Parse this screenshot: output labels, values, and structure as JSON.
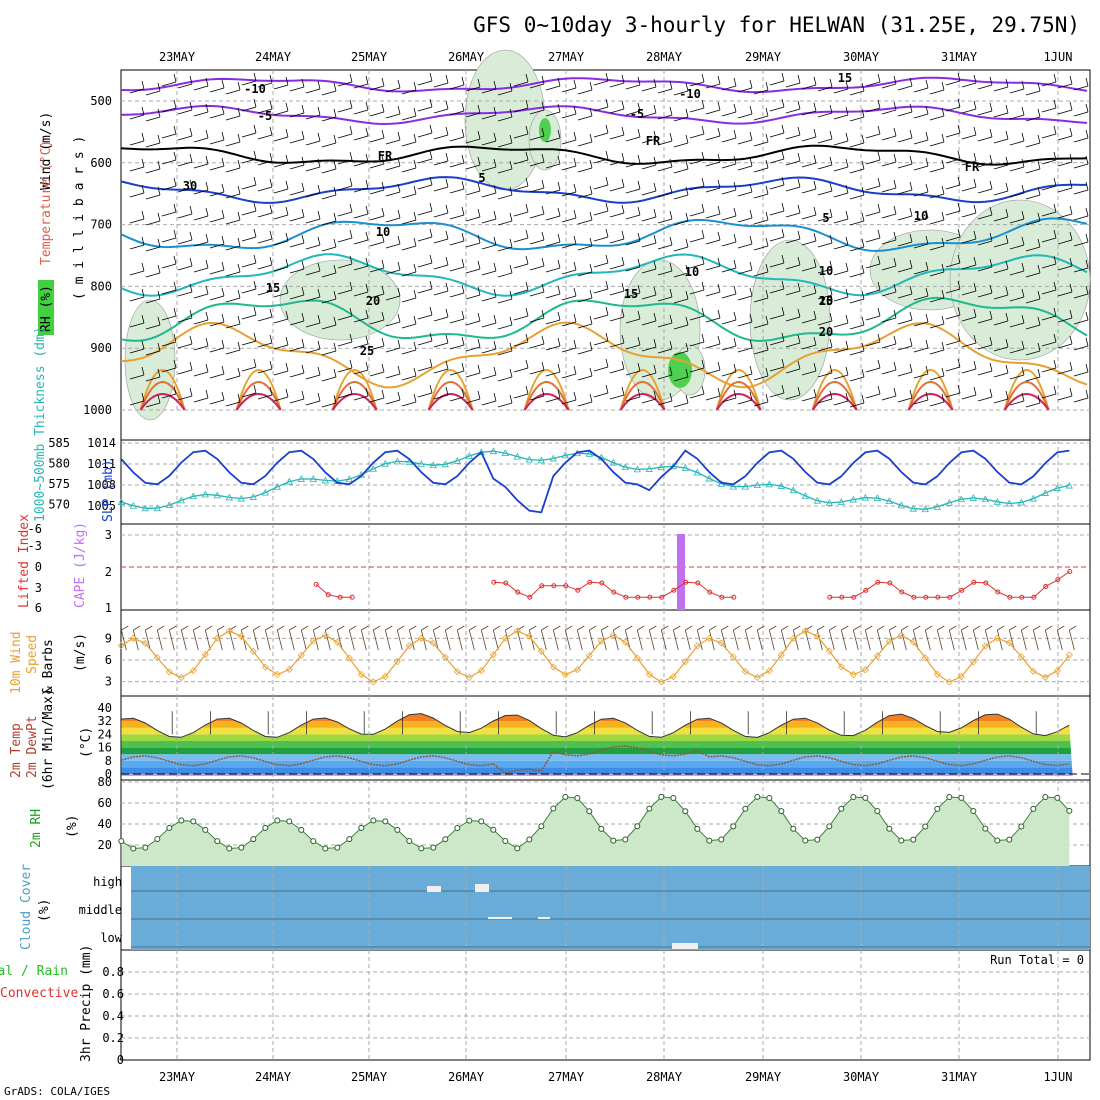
{
  "title": "GFS 0~10day 3-hourly for HELWAN (31.25E, 29.75N)",
  "footer": "GrADS: COLA/IGES",
  "dates": [
    "23MAY",
    "24MAY",
    "25MAY",
    "26MAY",
    "27MAY",
    "28MAY",
    "29MAY",
    "30MAY",
    "31MAY",
    "1JUN"
  ],
  "panels": {
    "upper": {
      "ylabel_unit": "( m i l l i b a r s )",
      "ylabel_wind": "Wind (m/s)",
      "ylabel_temp": "Temperature (°C)",
      "ylabel_rh": "RH (%)",
      "pressure_ticks": [
        "500",
        "600",
        "700",
        "800",
        "900",
        "1000"
      ],
      "contour_labels": [
        "-10",
        "-5",
        "FR",
        "5",
        "10",
        "15",
        "20",
        "25",
        "-10",
        "-5",
        "FR",
        "5",
        "10",
        "15",
        "20",
        "15",
        "FR",
        "10",
        "15",
        "20",
        "10",
        "30"
      ]
    },
    "slp": {
      "ylabel_thick": "1000~500mb Thickness (dm)",
      "ylabel_slp": "SLP (mb)",
      "left_ticks": [
        "585",
        "580",
        "575",
        "570"
      ],
      "right_ticks": [
        "1014",
        "1011",
        "1008",
        "1005"
      ]
    },
    "cape": {
      "ylabel_li": "Lifted Index",
      "ylabel_cape": "CAPE (J/kg)",
      "left_ticks": [
        "-6",
        "-3",
        "0",
        "3",
        "6"
      ],
      "right_ticks": [
        "3",
        "2",
        "1"
      ]
    },
    "wind10": {
      "ylabel1": "10m Wind",
      "ylabel2": "Speed",
      "ylabel3": "& Barbs",
      "ylabel_unit": "(m/s)",
      "ticks": [
        "9",
        "6",
        "3"
      ]
    },
    "temp2m": {
      "ylabel1": "2m Temp",
      "ylabel2": "2m DewPt",
      "ylabel3": "(6hr Min/Max)",
      "ylabel_unit": "(°C)",
      "ticks": [
        "40",
        "32",
        "24",
        "16",
        "8",
        "0"
      ]
    },
    "rh2m": {
      "ylabel": "2m RH",
      "ylabel_unit": "(%)",
      "ticks": [
        "80",
        "60",
        "40",
        "20"
      ]
    },
    "cloud": {
      "ylabel": "Cloud Cover",
      "ylabel_unit": "(%)",
      "levels": [
        "high",
        "middle",
        "low"
      ]
    },
    "precip": {
      "ylabel1": "Total / Rain",
      "ylabel2": "Convective",
      "ylabel3": "3hr Precip (mm)",
      "run_total": "Run Total = 0",
      "ticks": [
        "0.8",
        "0.6",
        "0.4",
        "0.2",
        "0"
      ]
    }
  },
  "colors": {
    "slp": "#1a3fcc",
    "thickness": "#2ab5b5",
    "lifted_index": "#e03030",
    "cape": "#c070f0",
    "wind_speed": "#e8a030",
    "rh": "#20c020",
    "cloud_bg": "#6aacd8"
  },
  "chart_data": [
    {
      "type": "line",
      "name": "SLP (mb)",
      "x": [
        "23MAY",
        "24MAY",
        "25MAY",
        "26MAY",
        "27MAY",
        "28MAY",
        "29MAY",
        "30MAY",
        "31MAY",
        "1JUN"
      ],
      "values": [
        1011.5,
        1013.5,
        1011,
        1011,
        1010,
        1008,
        1012,
        1012,
        1011,
        1012
      ],
      "ylim": [
        1003,
        1015
      ]
    },
    {
      "type": "line",
      "name": "1000~500mb Thickness (dm)",
      "x": [
        "23MAY",
        "24MAY",
        "25MAY",
        "26MAY",
        "27MAY",
        "28MAY",
        "29MAY",
        "30MAY",
        "31MAY",
        "1JUN"
      ],
      "values": [
        572,
        576,
        577,
        580,
        579,
        575,
        572,
        570.5,
        571,
        572
      ],
      "ylim": [
        568,
        586
      ]
    },
    {
      "type": "line",
      "name": "2m RH (%)",
      "x": [
        "23MAY",
        "24MAY",
        "25MAY",
        "26MAY",
        "27MAY",
        "28MAY",
        "29MAY",
        "30MAY",
        "31MAY",
        "1JUN"
      ],
      "values": [
        40,
        35,
        30,
        15,
        55,
        60,
        60,
        50,
        35,
        60
      ],
      "ylim": [
        0,
        80
      ]
    },
    {
      "type": "line",
      "name": "10m Wind Speed (m/s)",
      "x": [
        "23MAY",
        "24MAY",
        "25MAY",
        "26MAY",
        "27MAY",
        "28MAY",
        "29MAY",
        "30MAY",
        "31MAY",
        "1JUN"
      ],
      "values": [
        5,
        9,
        7,
        8,
        8,
        6,
        9,
        7,
        7,
        9
      ],
      "ylim": [
        1,
        11
      ]
    },
    {
      "type": "bar",
      "name": "CAPE (J/kg)",
      "x": [
        "28MAY"
      ],
      "values": [
        3
      ],
      "ylim": [
        1,
        3.2
      ]
    }
  ]
}
